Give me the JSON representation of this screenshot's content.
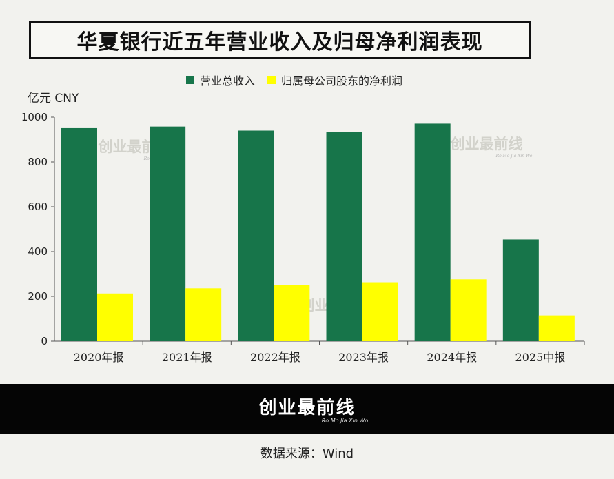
{
  "title": "华夏银行近五年营业收入及归母净利润表现",
  "unit_label": "亿元 CNY",
  "watermark": {
    "brand": "创业最前线",
    "sub": "Ro Mo Jia Xin Wo"
  },
  "footer": {
    "brand": "创业最前线",
    "sub": "Ro Mo Jia Xin Wo"
  },
  "source": "数据来源：Wind",
  "colors": {
    "revenue": "#17754a",
    "net_profit": "#ffff00",
    "background": "#f2f2ee"
  },
  "chart_data": {
    "type": "bar",
    "title": "华夏银行近五年营业收入及归母净利润表现",
    "xlabel": "",
    "ylabel": "亿元 CNY",
    "ylim": [
      0,
      1000
    ],
    "yticks": [
      0,
      200,
      400,
      600,
      800,
      1000
    ],
    "grid": false,
    "legend_position": "top-center",
    "categories": [
      "2020年报",
      "2021年报",
      "2022年报",
      "2023年报",
      "2024年报",
      "2025中报"
    ],
    "series": [
      {
        "name": "营业总收入",
        "color": "#17754a",
        "values": [
          954,
          958,
          940,
          933,
          971,
          454
        ]
      },
      {
        "name": "归属母公司股东的净利润",
        "color": "#ffff00",
        "values": [
          213,
          236,
          250,
          263,
          276,
          115
        ]
      }
    ]
  }
}
